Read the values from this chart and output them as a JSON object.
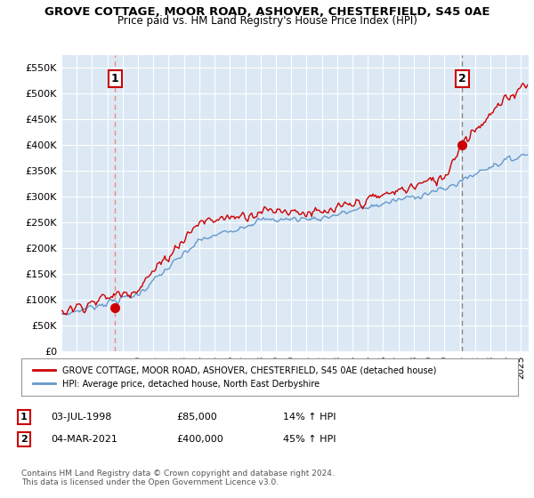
{
  "title": "GROVE COTTAGE, MOOR ROAD, ASHOVER, CHESTERFIELD, S45 0AE",
  "subtitle": "Price paid vs. HM Land Registry's House Price Index (HPI)",
  "ylim": [
    0,
    575000
  ],
  "yticks": [
    0,
    50000,
    100000,
    150000,
    200000,
    250000,
    300000,
    350000,
    400000,
    450000,
    500000,
    550000
  ],
  "sale1_x": 1998.5,
  "sale1_y": 85000,
  "sale1_label": "1",
  "sale2_x": 2021.17,
  "sale2_y": 400000,
  "sale2_label": "2",
  "hpi_line_color": "#6699cc",
  "price_line_color": "#cc0000",
  "sale_marker_color": "#cc0000",
  "sale1_vline_color": "#ee8888",
  "sale2_vline_color": "#888888",
  "chart_bg_color": "#dce9f5",
  "fig_bg_color": "#ffffff",
  "grid_color": "#ffffff",
  "legend_label_red": "GROVE COTTAGE, MOOR ROAD, ASHOVER, CHESTERFIELD, S45 0AE (detached house)",
  "legend_label_blue": "HPI: Average price, detached house, North East Derbyshire",
  "table_row1": [
    "1",
    "03-JUL-1998",
    "£85,000",
    "14% ↑ HPI"
  ],
  "table_row2": [
    "2",
    "04-MAR-2021",
    "£400,000",
    "45% ↑ HPI"
  ],
  "footnote": "Contains HM Land Registry data © Crown copyright and database right 2024.\nThis data is licensed under the Open Government Licence v3.0.",
  "xmin": 1995.0,
  "xmax": 2025.5
}
